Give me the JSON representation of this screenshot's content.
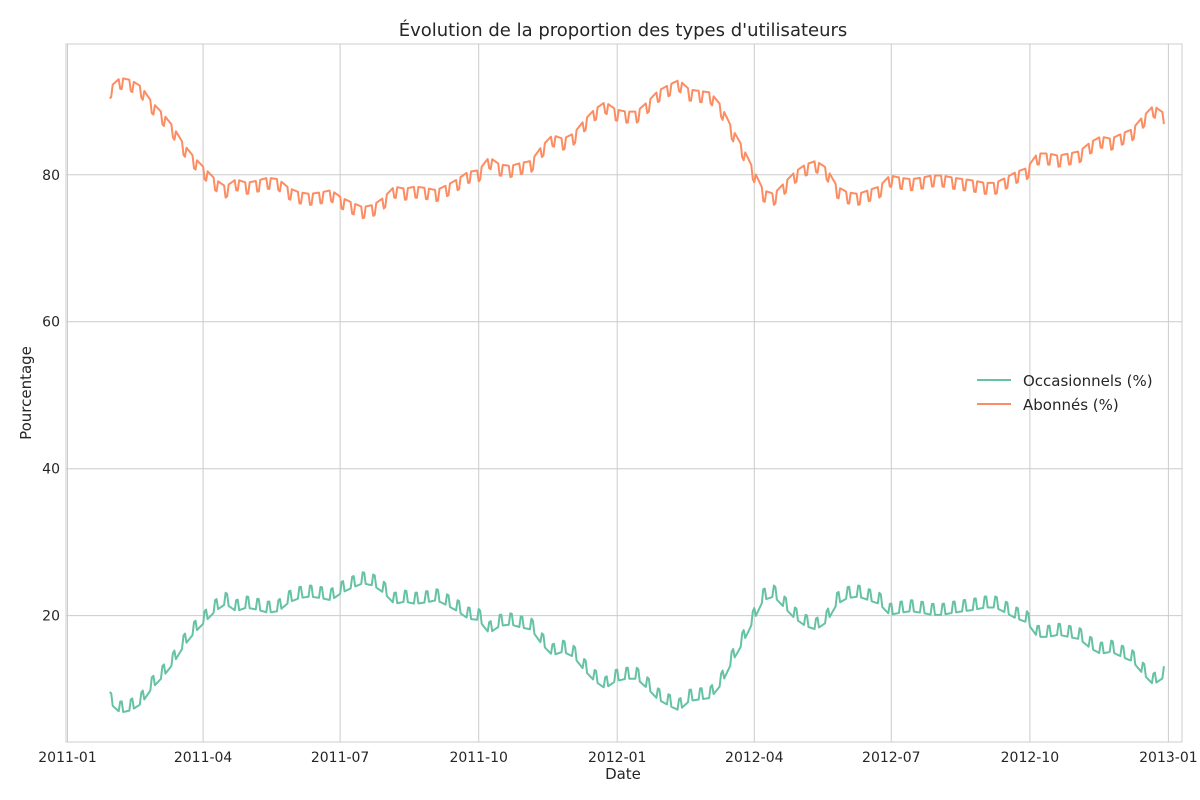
{
  "chart_data": {
    "type": "line",
    "title": "Évolution de la proportion des types d'utilisateurs",
    "xlabel": "Date",
    "ylabel": "Pourcentage",
    "x_range": [
      "2010-12-31",
      "2013-01-10"
    ],
    "y_range": [
      2.8,
      97.8
    ],
    "x_ticks": [
      {
        "label": "2011-01",
        "date": "2011-01-01"
      },
      {
        "label": "2011-04",
        "date": "2011-04-01"
      },
      {
        "label": "2011-07",
        "date": "2011-07-01"
      },
      {
        "label": "2011-10",
        "date": "2011-10-01"
      },
      {
        "label": "2012-01",
        "date": "2012-01-01"
      },
      {
        "label": "2012-04",
        "date": "2012-04-01"
      },
      {
        "label": "2012-07",
        "date": "2012-07-01"
      },
      {
        "label": "2012-10",
        "date": "2012-10-01"
      },
      {
        "label": "2013-01",
        "date": "2013-01-01"
      }
    ],
    "y_ticks": [
      20,
      40,
      60,
      80
    ],
    "grid": true,
    "legend_position": "right",
    "x": [
      "2011-01-29",
      "2011-02-05",
      "2011-02-12",
      "2011-02-19",
      "2011-02-26",
      "2011-03-05",
      "2011-03-12",
      "2011-03-19",
      "2011-03-26",
      "2011-04-02",
      "2011-04-09",
      "2011-04-16",
      "2011-04-23",
      "2011-04-30",
      "2011-05-07",
      "2011-05-14",
      "2011-05-21",
      "2011-05-28",
      "2011-06-04",
      "2011-06-11",
      "2011-06-18",
      "2011-06-25",
      "2011-07-02",
      "2011-07-09",
      "2011-07-16",
      "2011-07-23",
      "2011-07-30",
      "2011-08-06",
      "2011-08-13",
      "2011-08-20",
      "2011-08-27",
      "2011-09-03",
      "2011-09-10",
      "2011-09-17",
      "2011-09-24",
      "2011-10-01",
      "2011-10-08",
      "2011-10-15",
      "2011-10-22",
      "2011-10-29",
      "2011-11-05",
      "2011-11-12",
      "2011-11-19",
      "2011-11-26",
      "2011-12-03",
      "2011-12-10",
      "2011-12-17",
      "2011-12-24",
      "2011-12-31",
      "2012-01-07",
      "2012-01-14",
      "2012-01-21",
      "2012-01-28",
      "2012-02-04",
      "2012-02-11",
      "2012-02-18",
      "2012-02-25",
      "2012-03-03",
      "2012-03-10",
      "2012-03-17",
      "2012-03-24",
      "2012-03-31",
      "2012-04-07",
      "2012-04-14",
      "2012-04-21",
      "2012-04-28",
      "2012-05-05",
      "2012-05-12",
      "2012-05-19",
      "2012-05-26",
      "2012-06-02",
      "2012-06-09",
      "2012-06-16",
      "2012-06-23",
      "2012-06-30",
      "2012-07-07",
      "2012-07-14",
      "2012-07-21",
      "2012-07-28",
      "2012-08-04",
      "2012-08-11",
      "2012-08-18",
      "2012-08-25",
      "2012-09-01",
      "2012-09-08",
      "2012-09-15",
      "2012-09-22",
      "2012-09-29",
      "2012-10-06",
      "2012-10-13",
      "2012-10-20",
      "2012-10-27",
      "2012-11-03",
      "2012-11-10",
      "2012-11-17",
      "2012-11-24",
      "2012-12-01",
      "2012-12-08",
      "2012-12-15",
      "2012-12-22",
      "2012-12-29"
    ],
    "series": [
      {
        "name": "Occasionnels (%)",
        "color": "#66c2a5",
        "values": [
          8.5,
          7.2,
          7.5,
          8.4,
          10.5,
          12.0,
          13.8,
          16.2,
          18.0,
          19.5,
          21.0,
          22.0,
          21.0,
          21.5,
          21.2,
          20.8,
          21.0,
          22.2,
          22.8,
          23.0,
          22.8,
          22.5,
          23.5,
          24.2,
          24.8,
          24.5,
          23.5,
          22.0,
          22.3,
          22.0,
          22.2,
          22.5,
          21.8,
          21.0,
          20.0,
          19.8,
          18.0,
          19.0,
          19.2,
          18.8,
          18.5,
          16.5,
          15.0,
          15.5,
          14.8,
          13.0,
          11.5,
          10.5,
          11.5,
          11.8,
          11.8,
          10.5,
          9.0,
          8.2,
          7.5,
          8.8,
          9.0,
          9.2,
          11.0,
          14.0,
          16.5,
          19.5,
          22.5,
          23.0,
          21.5,
          20.0,
          19.0,
          18.5,
          19.5,
          22.0,
          22.8,
          23.0,
          22.5,
          22.0,
          20.5,
          20.8,
          21.0,
          20.8,
          20.5,
          20.5,
          20.8,
          21.0,
          21.2,
          21.5,
          21.5,
          20.8,
          20.0,
          19.5,
          17.5,
          17.5,
          17.8,
          17.5,
          17.2,
          16.0,
          15.2,
          15.5,
          14.8,
          14.2,
          12.5,
          11.0,
          12.0
        ]
      },
      {
        "name": "Abonnés (%)",
        "color": "#fc8d62",
        "values": [
          91.5,
          92.8,
          92.5,
          91.6,
          89.5,
          88.0,
          86.2,
          83.8,
          82.0,
          80.5,
          79.0,
          78.0,
          79.0,
          78.5,
          78.8,
          79.2,
          79.0,
          77.8,
          77.2,
          77.0,
          77.2,
          77.5,
          76.5,
          75.8,
          75.2,
          75.5,
          76.5,
          78.0,
          77.7,
          78.0,
          77.8,
          77.5,
          78.2,
          79.0,
          80.0,
          80.2,
          82.0,
          81.0,
          80.8,
          81.2,
          81.5,
          83.5,
          85.0,
          84.5,
          85.2,
          87.0,
          88.5,
          89.5,
          88.5,
          88.2,
          88.2,
          89.5,
          91.0,
          91.8,
          92.5,
          91.2,
          91.0,
          90.8,
          89.0,
          86.0,
          83.5,
          80.5,
          77.5,
          77.0,
          78.5,
          80.0,
          81.0,
          81.5,
          80.5,
          78.0,
          77.2,
          77.0,
          77.5,
          78.0,
          79.5,
          79.2,
          79.0,
          79.2,
          79.5,
          79.5,
          79.2,
          79.0,
          78.8,
          78.5,
          78.5,
          79.2,
          80.0,
          80.5,
          82.5,
          82.5,
          82.2,
          82.5,
          82.8,
          84.0,
          84.8,
          84.5,
          85.2,
          85.8,
          87.5,
          89.0,
          88.0
        ]
      }
    ]
  }
}
